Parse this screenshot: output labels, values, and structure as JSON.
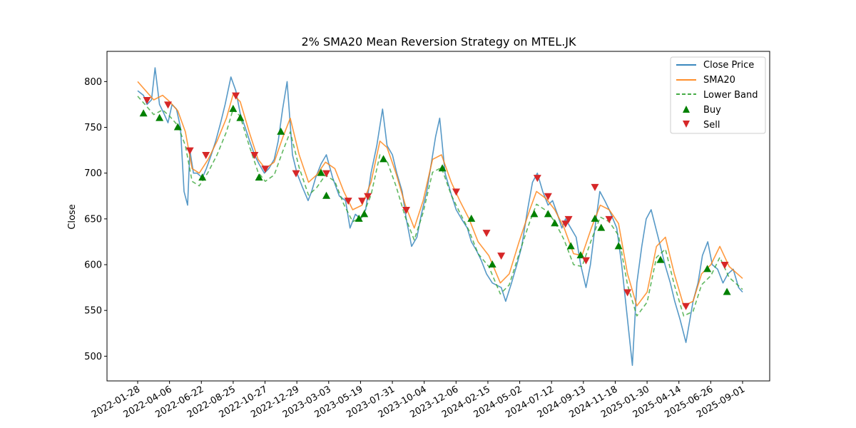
{
  "chart_data": {
    "type": "line",
    "title": "2% SMA20 Mean Reversion Strategy on MTEL.JK",
    "xlabel": "",
    "ylabel": "Close",
    "ylim": [
      473,
      833
    ],
    "y_ticks": [
      500,
      550,
      600,
      650,
      700,
      750,
      800
    ],
    "x_ticks": [
      "2022-01-28",
      "2022-04-06",
      "2022-06-22",
      "2022-08-25",
      "2022-10-27",
      "2022-12-29",
      "2023-03-03",
      "2023-05-19",
      "2023-07-31",
      "2023-10-04",
      "2023-12-06",
      "2024-02-15",
      "2024-05-02",
      "2024-07-12",
      "2024-09-13",
      "2024-11-18",
      "2025-01-30",
      "2025-04-14",
      "2025-06-26",
      "2025-09-01"
    ],
    "x_start": "2022-01-28",
    "x_end": "2025-10-15",
    "grid": false,
    "legend_position": "top-right",
    "colors": {
      "close": "#1f77b4",
      "sma": "#ff7f0e",
      "lower": "#2ca02c",
      "buy": "#008000",
      "sell": "#d62728"
    },
    "series": [
      {
        "name": "Close Price",
        "style": "solid",
        "x": [
          "2022-01-28",
          "2022-02-10",
          "2022-02-18",
          "2022-02-28",
          "2022-03-08",
          "2022-03-18",
          "2022-03-28",
          "2022-04-06",
          "2022-04-15",
          "2022-04-25",
          "2022-05-04",
          "2022-05-12",
          "2022-05-20",
          "2022-05-25",
          "2022-06-02",
          "2022-06-10",
          "2022-06-22",
          "2022-07-01",
          "2022-07-12",
          "2022-07-22",
          "2022-08-02",
          "2022-08-12",
          "2022-08-25",
          "2022-09-05",
          "2022-09-15",
          "2022-09-26",
          "2022-10-06",
          "2022-10-17",
          "2022-10-27",
          "2022-11-08",
          "2022-11-18",
          "2022-11-30",
          "2022-12-09",
          "2022-12-19",
          "2022-12-29",
          "2023-01-10",
          "2023-01-20",
          "2023-02-01",
          "2023-02-14",
          "2023-02-22",
          "2023-03-03",
          "2023-03-15",
          "2023-03-27",
          "2023-04-10",
          "2023-04-25",
          "2023-05-09",
          "2023-05-19",
          "2023-05-31",
          "2023-06-12",
          "2023-06-23",
          "2023-07-05",
          "2023-07-18",
          "2023-07-31",
          "2023-08-10",
          "2023-08-22",
          "2023-09-01",
          "2023-09-13",
          "2023-09-22",
          "2023-10-04",
          "2023-10-16",
          "2023-10-26",
          "2023-11-07",
          "2023-11-17",
          "2023-11-27",
          "2023-12-06",
          "2023-12-18",
          "2024-01-02",
          "2024-01-12",
          "2024-01-24",
          "2024-02-06",
          "2024-02-15",
          "2024-02-27",
          "2024-03-08",
          "2024-03-20",
          "2024-04-02",
          "2024-04-22",
          "2024-05-02",
          "2024-05-15",
          "2024-05-27",
          "2024-06-07",
          "2024-06-20",
          "2024-07-01",
          "2024-07-12",
          "2024-07-24",
          "2024-08-05",
          "2024-08-15",
          "2024-08-26",
          "2024-09-05",
          "2024-09-13",
          "2024-09-25",
          "2024-10-07",
          "2024-10-17",
          "2024-10-29",
          "2024-11-08",
          "2024-11-18",
          "2024-11-29",
          "2024-12-10",
          "2024-12-20",
          "2025-01-06",
          "2025-01-17",
          "2025-01-30",
          "2025-02-10",
          "2025-02-20",
          "2025-03-03",
          "2025-03-13",
          "2025-03-24",
          "2025-04-14",
          "2025-04-24",
          "2025-05-06",
          "2025-05-16",
          "2025-05-28",
          "2025-06-10",
          "2025-06-26",
          "2025-07-07",
          "2025-07-17",
          "2025-07-29",
          "2025-08-08",
          "2025-08-20",
          "2025-09-01",
          "2025-09-12",
          "2025-09-24",
          "2025-10-06",
          "2025-10-15"
        ],
        "values": [
          790,
          785,
          775,
          780,
          815,
          775,
          765,
          755,
          775,
          770,
          750,
          680,
          665,
          725,
          700,
          700,
          695,
          705,
          720,
          735,
          755,
          775,
          805,
          790,
          765,
          750,
          735,
          720,
          710,
          700,
          705,
          715,
          735,
          770,
          800,
          720,
          700,
          685,
          670,
          680,
          695,
          710,
          720,
          695,
          675,
          670,
          640,
          655,
          650,
          660,
          700,
          730,
          770,
          730,
          720,
          700,
          680,
          650,
          620,
          630,
          655,
          680,
          710,
          740,
          760,
          700,
          675,
          660,
          650,
          640,
          625,
          615,
          605,
          590,
          580,
          575,
          560,
          580,
          600,
          620,
          660,
          690,
          700,
          680,
          665,
          670,
          655,
          640,
          650,
          640,
          630,
          600,
          575,
          600,
          640,
          680,
          670,
          660,
          640,
          600,
          540,
          490,
          580,
          620,
          650,
          660,
          620,
          600,
          580,
          560,
          540,
          515,
          560,
          580,
          610,
          625,
          600,
          595,
          580,
          590,
          595,
          575,
          570
        ]
      },
      {
        "name": "SMA20",
        "style": "solid",
        "x": [
          "2022-01-28",
          "2022-02-15",
          "2022-03-05",
          "2022-03-25",
          "2022-04-10",
          "2022-04-28",
          "2022-05-15",
          "2022-05-30",
          "2022-06-15",
          "2022-07-05",
          "2022-07-25",
          "2022-08-15",
          "2022-08-30",
          "2022-09-15",
          "2022-10-05",
          "2022-10-25",
          "2022-11-10",
          "2022-11-30",
          "2022-12-20",
          "2023-01-05",
          "2023-01-25",
          "2023-02-15",
          "2023-03-05",
          "2023-03-25",
          "2023-04-15",
          "2023-05-05",
          "2023-05-25",
          "2023-06-15",
          "2023-07-05",
          "2023-07-25",
          "2023-08-10",
          "2023-08-30",
          "2023-09-20",
          "2023-10-10",
          "2023-10-30",
          "2023-11-20",
          "2023-12-10",
          "2024-01-01",
          "2024-01-20",
          "2024-02-10",
          "2024-03-01",
          "2024-03-25",
          "2024-04-20",
          "2024-05-10",
          "2024-06-01",
          "2024-06-25",
          "2024-07-10",
          "2024-08-01",
          "2024-08-20",
          "2024-09-10",
          "2024-10-01",
          "2024-10-20",
          "2024-11-10",
          "2024-11-30",
          "2024-12-20",
          "2025-01-10",
          "2025-01-30",
          "2025-02-20",
          "2025-03-15",
          "2025-04-05",
          "2025-04-25",
          "2025-05-15",
          "2025-06-05",
          "2025-06-26",
          "2025-07-15",
          "2025-08-05",
          "2025-08-25",
          "2025-09-15",
          "2025-10-15"
        ],
        "values": [
          800,
          790,
          780,
          785,
          778,
          768,
          745,
          705,
          700,
          715,
          735,
          760,
          786,
          778,
          745,
          715,
          705,
          712,
          740,
          760,
          720,
          690,
          698,
          712,
          705,
          680,
          660,
          665,
          690,
          735,
          728,
          700,
          665,
          640,
          670,
          715,
          720,
          690,
          670,
          650,
          625,
          610,
          580,
          590,
          625,
          660,
          680,
          672,
          660,
          640,
          612,
          610,
          640,
          665,
          660,
          645,
          590,
          555,
          570,
          620,
          630,
          590,
          555,
          560,
          590,
          600,
          620,
          598,
          585
        ]
      },
      {
        "name": "Lower Band",
        "style": "dashed",
        "x": [
          "2022-01-28",
          "2022-02-15",
          "2022-03-05",
          "2022-03-25",
          "2022-04-10",
          "2022-04-28",
          "2022-05-15",
          "2022-05-30",
          "2022-06-15",
          "2022-07-05",
          "2022-07-25",
          "2022-08-15",
          "2022-08-30",
          "2022-09-15",
          "2022-10-05",
          "2022-10-25",
          "2022-11-10",
          "2022-11-30",
          "2022-12-20",
          "2023-01-05",
          "2023-01-25",
          "2023-02-15",
          "2023-03-05",
          "2023-03-25",
          "2023-04-15",
          "2023-05-05",
          "2023-05-25",
          "2023-06-15",
          "2023-07-05",
          "2023-07-25",
          "2023-08-10",
          "2023-08-30",
          "2023-09-20",
          "2023-10-10",
          "2023-10-30",
          "2023-11-20",
          "2023-12-10",
          "2024-01-01",
          "2024-01-20",
          "2024-02-10",
          "2024-03-01",
          "2024-03-25",
          "2024-04-20",
          "2024-05-10",
          "2024-06-01",
          "2024-06-25",
          "2024-07-10",
          "2024-08-01",
          "2024-08-20",
          "2024-09-10",
          "2024-10-01",
          "2024-10-20",
          "2024-11-10",
          "2024-11-30",
          "2024-12-20",
          "2025-01-10",
          "2025-01-30",
          "2025-02-20",
          "2025-03-15",
          "2025-04-05",
          "2025-04-25",
          "2025-05-15",
          "2025-06-05",
          "2025-06-26",
          "2025-07-15",
          "2025-08-05",
          "2025-08-25",
          "2025-09-15",
          "2025-10-15"
        ],
        "values": [
          784,
          774,
          764,
          769,
          762,
          752,
          730,
          691,
          686,
          701,
          720,
          745,
          770,
          762,
          730,
          701,
          691,
          698,
          725,
          745,
          706,
          676,
          684,
          698,
          691,
          666,
          647,
          652,
          676,
          720,
          713,
          686,
          652,
          627,
          657,
          701,
          706,
          676,
          657,
          637,
          612,
          598,
          568,
          578,
          612,
          647,
          666,
          659,
          647,
          627,
          600,
          598,
          627,
          652,
          647,
          632,
          578,
          544,
          559,
          608,
          617,
          578,
          544,
          549,
          578,
          588,
          608,
          586,
          573
        ]
      }
    ],
    "markers": [
      {
        "name": "Buy",
        "symbol": "triangle-up",
        "points": [
          [
            "2022-02-10",
            765
          ],
          [
            "2022-03-18",
            760
          ],
          [
            "2022-04-28",
            750
          ],
          [
            "2022-06-22",
            695
          ],
          [
            "2022-08-30",
            770
          ],
          [
            "2022-09-15",
            760
          ],
          [
            "2022-10-27",
            695
          ],
          [
            "2022-12-15",
            745
          ],
          [
            "2023-03-15",
            700
          ],
          [
            "2023-03-27",
            675
          ],
          [
            "2023-06-08",
            650
          ],
          [
            "2023-06-20",
            655
          ],
          [
            "2023-08-02",
            715
          ],
          [
            "2023-12-12",
            705
          ],
          [
            "2024-02-15",
            650
          ],
          [
            "2024-04-02",
            600
          ],
          [
            "2024-07-05",
            655
          ],
          [
            "2024-08-05",
            655
          ],
          [
            "2024-08-20",
            645
          ],
          [
            "2024-09-25",
            620
          ],
          [
            "2024-10-17",
            610
          ],
          [
            "2024-11-18",
            650
          ],
          [
            "2024-12-02",
            640
          ],
          [
            "2025-01-10",
            620
          ],
          [
            "2025-04-14",
            605
          ],
          [
            "2025-07-28",
            595
          ],
          [
            "2025-09-10",
            570
          ]
        ]
      },
      {
        "name": "Sell",
        "symbol": "triangle-down",
        "points": [
          [
            "2022-02-18",
            780
          ],
          [
            "2022-04-06",
            775
          ],
          [
            "2022-05-25",
            725
          ],
          [
            "2022-06-30",
            720
          ],
          [
            "2022-09-05",
            785
          ],
          [
            "2022-10-17",
            720
          ],
          [
            "2022-11-10",
            705
          ],
          [
            "2023-01-18",
            700
          ],
          [
            "2023-03-27",
            700
          ],
          [
            "2023-05-15",
            670
          ],
          [
            "2023-06-15",
            670
          ],
          [
            "2023-06-28",
            675
          ],
          [
            "2023-09-22",
            660
          ],
          [
            "2024-01-12",
            680
          ],
          [
            "2024-03-20",
            635
          ],
          [
            "2024-04-22",
            610
          ],
          [
            "2024-07-12",
            695
          ],
          [
            "2024-08-05",
            675
          ],
          [
            "2024-09-13",
            645
          ],
          [
            "2024-09-20",
            650
          ],
          [
            "2024-10-29",
            605
          ],
          [
            "2024-11-18",
            685
          ],
          [
            "2024-12-20",
            650
          ],
          [
            "2025-01-30",
            570
          ],
          [
            "2025-06-10",
            555
          ],
          [
            "2025-09-05",
            600
          ]
        ]
      }
    ]
  },
  "legend": {
    "close_label": "Close Price",
    "sma_label": "SMA20",
    "lower_label": "Lower Band",
    "buy_label": "Buy",
    "sell_label": "Sell"
  }
}
